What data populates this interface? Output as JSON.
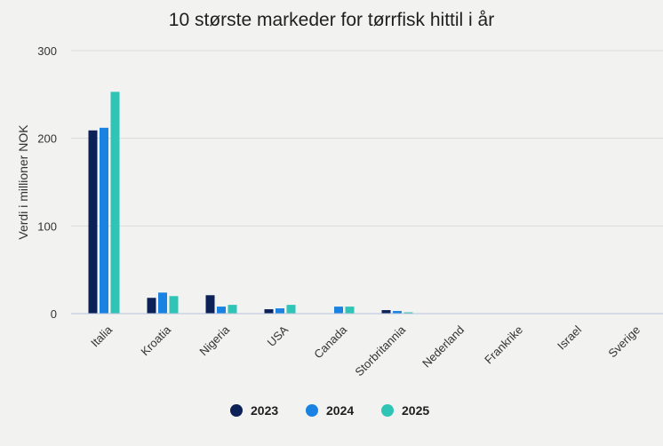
{
  "chart_data": {
    "type": "bar",
    "title": "10 største markeder for tørrfisk hittil i år",
    "xlabel": "",
    "ylabel": "Verdi i millioner NOK",
    "ylim": [
      0,
      300
    ],
    "yticks": [
      0,
      100,
      200,
      300
    ],
    "grid": true,
    "legend_position": "bottom",
    "categories": [
      "Italia",
      "Kroatia",
      "Nigeria",
      "USA",
      "Canada",
      "Storbritannia",
      "Nederland",
      "Frankrike",
      "Israel",
      "Sverige"
    ],
    "series": [
      {
        "name": "2023",
        "color": "#0d2159",
        "values": [
          209,
          18,
          21,
          5,
          0,
          4,
          0.3,
          0.3,
          0.1,
          0.1
        ]
      },
      {
        "name": "2024",
        "color": "#1a82e2",
        "values": [
          212,
          24,
          8,
          6,
          8,
          3,
          0.3,
          0.3,
          0.1,
          0.1
        ]
      },
      {
        "name": "2025",
        "color": "#2ec4b6",
        "values": [
          253,
          20,
          10,
          10,
          8,
          1.5,
          0.3,
          0.3,
          0.1,
          0.1
        ]
      }
    ]
  }
}
